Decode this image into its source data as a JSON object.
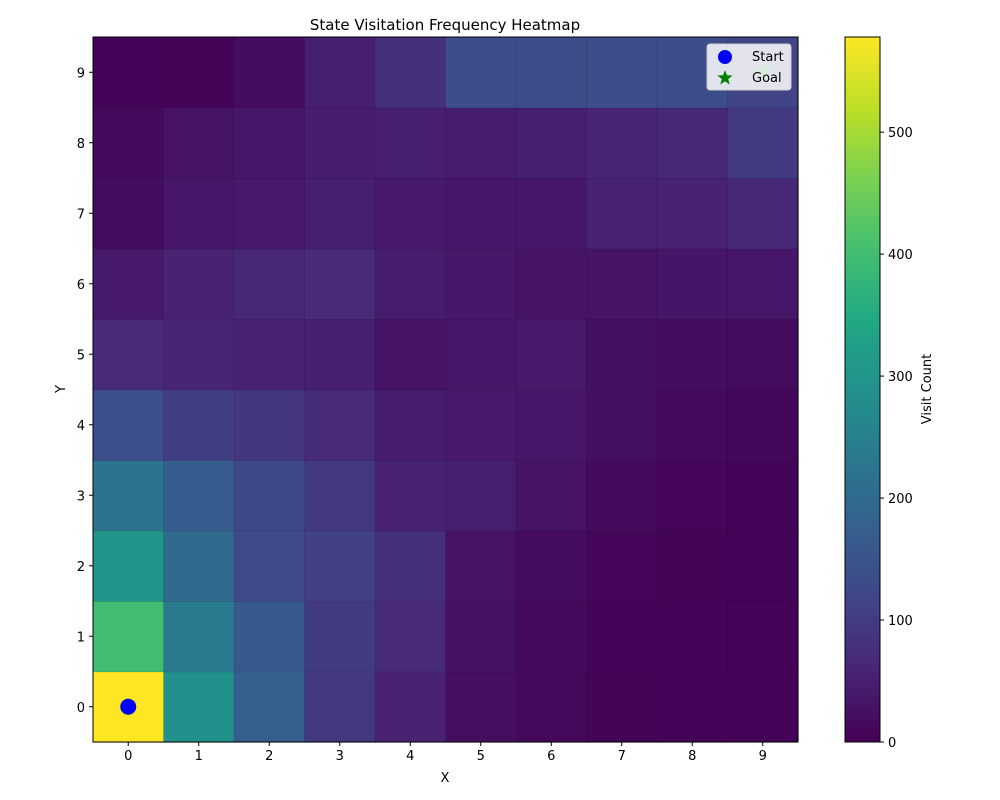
{
  "chart_data": {
    "type": "heatmap",
    "title": "State Visitation Frequency Heatmap",
    "xlabel": "X",
    "ylabel": "Y",
    "x_ticks": [
      "0",
      "1",
      "2",
      "3",
      "4",
      "5",
      "6",
      "7",
      "8",
      "9"
    ],
    "y_ticks": [
      "0",
      "1",
      "2",
      "3",
      "4",
      "5",
      "6",
      "7",
      "8",
      "9"
    ],
    "xlim": [
      -0.5,
      9.5
    ],
    "ylim": [
      -0.5,
      9.5
    ],
    "colormap": "viridis",
    "colorbar": {
      "label": "Visit Count",
      "range": [
        0,
        578
      ],
      "ticks": [
        0,
        100,
        200,
        300,
        400,
        500
      ]
    },
    "grid_values": [
      [
        578,
        290,
        175,
        95,
        55,
        22,
        12,
        6,
        4,
        3
      ],
      [
        400,
        235,
        160,
        100,
        70,
        28,
        14,
        7,
        5,
        4
      ],
      [
        300,
        200,
        130,
        110,
        80,
        30,
        18,
        8,
        6,
        5
      ],
      [
        220,
        170,
        125,
        95,
        55,
        50,
        30,
        15,
        8,
        7
      ],
      [
        140,
        105,
        90,
        70,
        45,
        40,
        35,
        25,
        13,
        10
      ],
      [
        70,
        60,
        55,
        50,
        30,
        35,
        40,
        25,
        20,
        18
      ],
      [
        40,
        55,
        65,
        70,
        45,
        35,
        30,
        30,
        33,
        35
      ],
      [
        20,
        35,
        40,
        50,
        40,
        35,
        35,
        55,
        55,
        65
      ],
      [
        15,
        30,
        35,
        45,
        50,
        45,
        50,
        60,
        65,
        100
      ],
      [
        5,
        6,
        20,
        50,
        80,
        135,
        135,
        135,
        135,
        115
      ]
    ],
    "markers": [
      {
        "name": "Start",
        "x": 0,
        "y": 0,
        "shape": "circle",
        "color": "#0000ff"
      },
      {
        "name": "Goal",
        "x": 9,
        "y": 9,
        "shape": "star",
        "color": "#008000"
      }
    ],
    "legend": {
      "placement": "top-right",
      "entries": [
        "Start",
        "Goal"
      ]
    }
  }
}
